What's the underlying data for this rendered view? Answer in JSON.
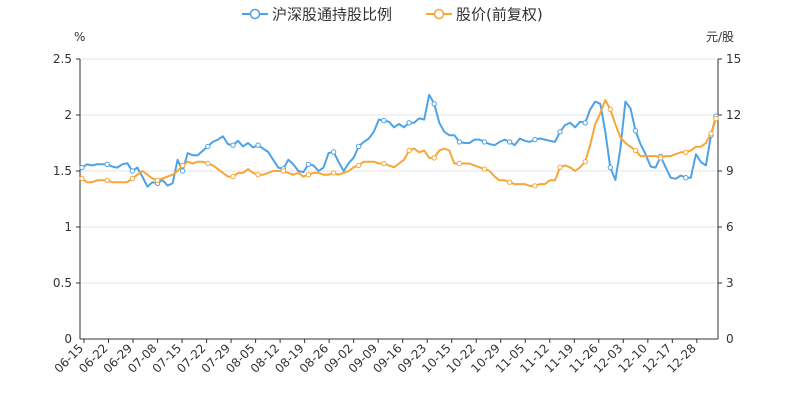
{
  "chart_data": {
    "type": "line",
    "title": "",
    "legend": {
      "placement": "top-center",
      "items": [
        {
          "name": "沪深股通持股比例",
          "color": "#4ea3e6"
        },
        {
          "name": "股价(前复权)",
          "color": "#f7a637"
        }
      ]
    },
    "y_left": {
      "unit": "%",
      "min": 0,
      "max": 2.5,
      "ticks": [
        "0",
        "0.5",
        "1",
        "1.5",
        "2",
        "2.5"
      ]
    },
    "y_right": {
      "unit": "元/股",
      "min": 0,
      "max": 15,
      "ticks": [
        "0",
        "3",
        "6",
        "9",
        "12",
        "15"
      ]
    },
    "x_tick_labels": [
      "06-15",
      "06-22",
      "06-29",
      "07-08",
      "07-15",
      "07-22",
      "07-29",
      "08-05",
      "08-12",
      "08-19",
      "08-26",
      "09-02",
      "09-09",
      "09-16",
      "09-23",
      "10-15",
      "10-22",
      "10-29",
      "11-05",
      "11-12",
      "11-19",
      "11-26",
      "12-03",
      "12-10",
      "12-17",
      "12-28"
    ],
    "grid": {
      "horizontal": true,
      "vertical": false
    },
    "series": [
      {
        "name": "沪深股通持股比例",
        "axis": "left",
        "color": "#4ea3e6",
        "values": [
          1.53,
          1.56,
          1.55,
          1.56,
          1.56,
          1.56,
          1.54,
          1.53,
          1.56,
          1.57,
          1.5,
          1.53,
          1.45,
          1.36,
          1.4,
          1.39,
          1.42,
          1.37,
          1.39,
          1.6,
          1.5,
          1.66,
          1.64,
          1.64,
          1.68,
          1.72,
          1.76,
          1.78,
          1.81,
          1.74,
          1.73,
          1.77,
          1.72,
          1.75,
          1.71,
          1.73,
          1.7,
          1.67,
          1.6,
          1.53,
          1.52,
          1.6,
          1.56,
          1.5,
          1.49,
          1.56,
          1.55,
          1.5,
          1.53,
          1.66,
          1.67,
          1.58,
          1.5,
          1.57,
          1.62,
          1.72,
          1.76,
          1.79,
          1.85,
          1.96,
          1.95,
          1.94,
          1.89,
          1.92,
          1.89,
          1.93,
          1.93,
          1.97,
          1.96,
          2.18,
          2.1,
          1.93,
          1.85,
          1.82,
          1.82,
          1.76,
          1.75,
          1.75,
          1.78,
          1.78,
          1.76,
          1.74,
          1.73,
          1.76,
          1.78,
          1.76,
          1.73,
          1.79,
          1.77,
          1.76,
          1.78,
          1.79,
          1.78,
          1.77,
          1.76,
          1.85,
          1.91,
          1.93,
          1.89,
          1.94,
          1.93,
          2.05,
          2.12,
          2.1,
          1.85,
          1.53,
          1.42,
          1.7,
          2.12,
          2.06,
          1.86,
          1.74,
          1.65,
          1.54,
          1.53,
          1.63,
          1.53,
          1.44,
          1.43,
          1.46,
          1.44,
          1.44,
          1.65,
          1.58,
          1.55,
          1.82,
          1.99
        ]
      },
      {
        "name": "股价(前复权)",
        "axis": "right",
        "color": "#f7a637",
        "values": [
          8.6,
          8.4,
          8.4,
          8.5,
          8.5,
          8.5,
          8.4,
          8.4,
          8.4,
          8.4,
          8.6,
          8.8,
          9.0,
          8.8,
          8.6,
          8.5,
          8.6,
          8.7,
          8.8,
          9.0,
          9.3,
          9.5,
          9.4,
          9.5,
          9.5,
          9.4,
          9.3,
          9.1,
          8.9,
          8.7,
          8.7,
          8.9,
          8.9,
          9.1,
          8.9,
          8.8,
          8.8,
          8.9,
          9.0,
          9.0,
          9.0,
          8.9,
          8.8,
          8.9,
          8.7,
          8.8,
          8.9,
          8.9,
          8.8,
          8.8,
          8.9,
          8.8,
          8.9,
          9.0,
          9.2,
          9.3,
          9.5,
          9.5,
          9.5,
          9.4,
          9.4,
          9.3,
          9.2,
          9.4,
          9.6,
          10.1,
          10.2,
          10.0,
          10.1,
          9.7,
          9.7,
          10.1,
          10.2,
          10.1,
          9.4,
          9.4,
          9.4,
          9.4,
          9.3,
          9.2,
          9.1,
          9.0,
          8.7,
          8.5,
          8.5,
          8.4,
          8.3,
          8.3,
          8.3,
          8.2,
          8.2,
          8.3,
          8.3,
          8.5,
          8.5,
          9.2,
          9.3,
          9.2,
          9.0,
          9.2,
          9.5,
          10.4,
          11.5,
          12.1,
          12.8,
          12.3,
          11.5,
          10.8,
          10.5,
          10.3,
          10.1,
          9.8,
          9.8,
          9.8,
          9.8,
          9.7,
          9.8,
          9.8,
          9.9,
          10.0,
          10.0,
          10.1,
          10.3,
          10.3,
          10.5,
          11.0,
          11.8
        ]
      }
    ]
  }
}
